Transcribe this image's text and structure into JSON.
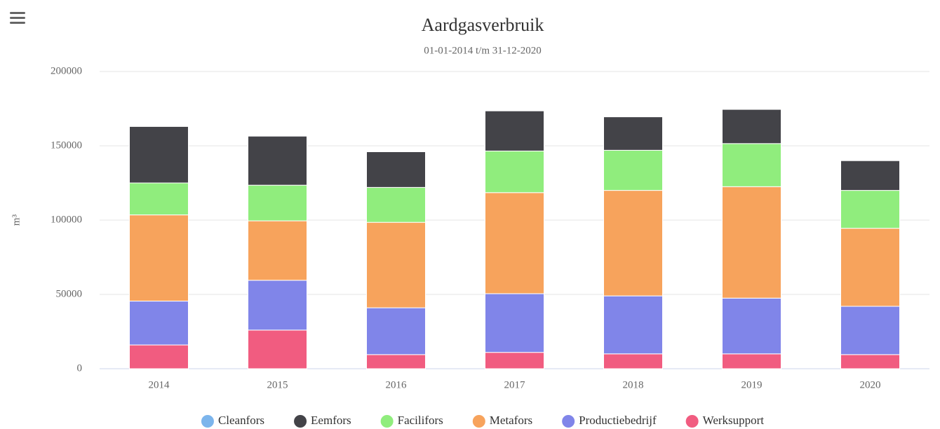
{
  "chart_data": {
    "type": "bar",
    "stacked": true,
    "title": "Aardgasverbruik",
    "subtitle": "01-01-2014 t/m 31-12-2020",
    "y_label": "m³",
    "categories": [
      "2014",
      "2015",
      "2016",
      "2017",
      "2018",
      "2019",
      "2020"
    ],
    "ylim": [
      0,
      200000
    ],
    "yticks": [
      0,
      50000,
      100000,
      150000,
      200000
    ],
    "grid": true,
    "legend": "bottom",
    "series": [
      {
        "name": "Cleanfors",
        "color": "#7cb5ec",
        "values": [
          0,
          0,
          0,
          0,
          0,
          0,
          0
        ]
      },
      {
        "name": "Eemfors",
        "color": "#434348",
        "values": [
          38000,
          33000,
          24000,
          27000,
          22500,
          23000,
          20000
        ]
      },
      {
        "name": "Facilifors",
        "color": "#90ed7d",
        "values": [
          21500,
          24000,
          23500,
          28000,
          27000,
          29000,
          25500
        ]
      },
      {
        "name": "Metafors",
        "color": "#f7a35c",
        "values": [
          58000,
          40000,
          57500,
          68000,
          71000,
          75000,
          52500
        ]
      },
      {
        "name": "Productiebedrijf",
        "color": "#8085e9",
        "values": [
          29500,
          33500,
          31500,
          39500,
          39000,
          37500,
          32500
        ]
      },
      {
        "name": "Werksupport",
        "color": "#f15c80",
        "values": [
          16000,
          26000,
          9500,
          11000,
          10000,
          10000,
          9500
        ]
      }
    ]
  }
}
